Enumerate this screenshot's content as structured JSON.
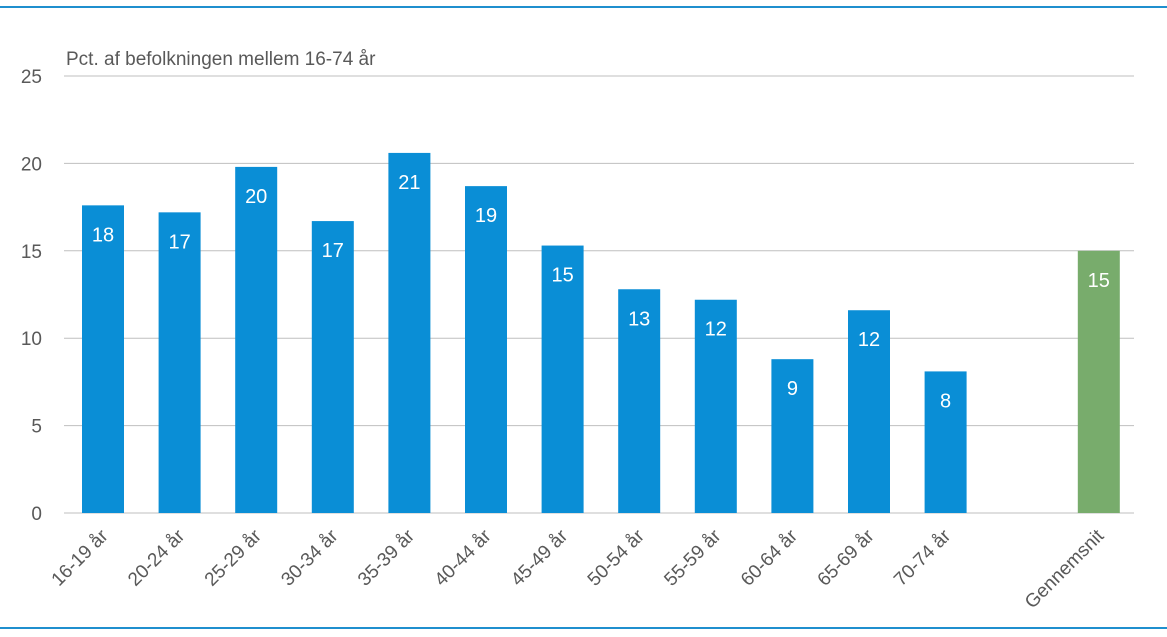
{
  "chart_data": {
    "type": "bar",
    "ylabel": "Pct. af befolkningen mellem 16-74 år",
    "ylim": [
      0,
      25
    ],
    "yticks": [
      0,
      5,
      10,
      15,
      20,
      25
    ],
    "grid": true,
    "categories": [
      "16-19 år",
      "20-24 år",
      "25-29 år",
      "30-34 år",
      "35-39 år",
      "40-44 år",
      "45-49 år",
      "50-54 år",
      "55-59 år",
      "60-64 år",
      "65-69 år",
      "70-74 år",
      "",
      "Gennemsnit"
    ],
    "values": [
      17.6,
      17.2,
      19.8,
      16.7,
      20.6,
      18.7,
      15.3,
      12.8,
      12.2,
      8.8,
      11.6,
      8.1,
      null,
      15.0
    ],
    "labels": [
      "18",
      "17",
      "20",
      "17",
      "21",
      "19",
      "15",
      "13",
      "12",
      "9",
      "12",
      "8",
      "",
      "15"
    ],
    "colors": {
      "bar": "#0a8ed6",
      "average": "#78ac6c",
      "gridline": "#bfbfbf",
      "rule": "#1f8fce"
    },
    "highlight_category": "Gennemsnit"
  }
}
